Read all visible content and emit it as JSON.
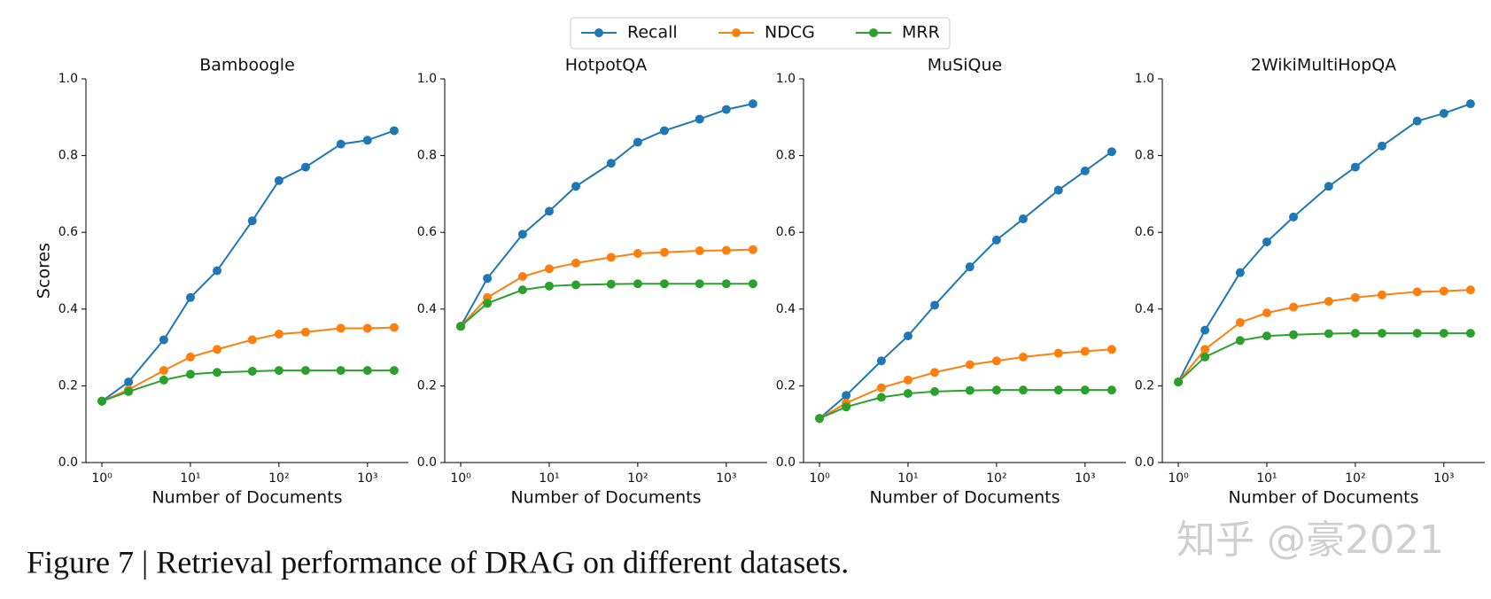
{
  "chart_data": [
    {
      "type": "line",
      "title": "Bamboogle",
      "xlabel": "Number of Documents",
      "ylabel": "Scores",
      "xscale": "log",
      "x": [
        1,
        2,
        5,
        10,
        20,
        50,
        100,
        200,
        500,
        1000,
        2000
      ],
      "series": [
        {
          "name": "Recall",
          "color": "#1f77b4",
          "values": [
            0.16,
            0.21,
            0.32,
            0.43,
            0.5,
            0.63,
            0.735,
            0.77,
            0.83,
            0.84,
            0.865
          ]
        },
        {
          "name": "NDCG",
          "color": "#ff7f0e",
          "values": [
            0.16,
            0.19,
            0.24,
            0.275,
            0.295,
            0.32,
            0.335,
            0.34,
            0.35,
            0.35,
            0.352
          ]
        },
        {
          "name": "MRR",
          "color": "#2ca02c",
          "values": [
            0.16,
            0.185,
            0.215,
            0.23,
            0.235,
            0.238,
            0.24,
            0.24,
            0.24,
            0.24,
            0.24
          ]
        }
      ],
      "xlim": [
        0.66,
        2900
      ],
      "xticks": [
        {
          "value": 1,
          "label": "10⁰"
        },
        {
          "value": 10,
          "label": "10¹"
        },
        {
          "value": 100,
          "label": "10²"
        },
        {
          "value": 1000,
          "label": "10³"
        }
      ],
      "ylim": [
        0,
        1
      ],
      "yticks": [
        {
          "value": 0,
          "label": "0.0"
        },
        0.2,
        0.4,
        0.6,
        0.8,
        {
          "value": 1,
          "label": "1.0"
        }
      ]
    },
    {
      "type": "line",
      "title": "HotpotQA",
      "xlabel": "Number of Documents",
      "xscale": "log",
      "x": [
        1,
        2,
        5,
        10,
        20,
        50,
        100,
        200,
        500,
        1000,
        2000
      ],
      "series": [
        {
          "name": "Recall",
          "color": "#1f77b4",
          "values": [
            0.355,
            0.48,
            0.595,
            0.655,
            0.72,
            0.78,
            0.835,
            0.865,
            0.895,
            0.92,
            0.935
          ]
        },
        {
          "name": "NDCG",
          "color": "#ff7f0e",
          "values": [
            0.355,
            0.43,
            0.485,
            0.505,
            0.52,
            0.535,
            0.545,
            0.548,
            0.552,
            0.553,
            0.555
          ]
        },
        {
          "name": "MRR",
          "color": "#2ca02c",
          "values": [
            0.355,
            0.415,
            0.45,
            0.46,
            0.463,
            0.465,
            0.466,
            0.466,
            0.466,
            0.466,
            0.466
          ]
        }
      ],
      "xlim": [
        0.66,
        2900
      ],
      "xticks": [
        {
          "value": 1,
          "label": "10⁰"
        },
        {
          "value": 10,
          "label": "10¹"
        },
        {
          "value": 100,
          "label": "10²"
        },
        {
          "value": 1000,
          "label": "10³"
        }
      ],
      "ylim": [
        0,
        1
      ],
      "yticks": [
        {
          "value": 0,
          "label": "0.0"
        },
        0.2,
        0.4,
        0.6,
        0.8,
        {
          "value": 1,
          "label": "1.0"
        }
      ]
    },
    {
      "type": "line",
      "title": "MuSiQue",
      "xlabel": "Number of Documents",
      "xscale": "log",
      "x": [
        1,
        2,
        5,
        10,
        20,
        50,
        100,
        200,
        500,
        1000,
        2000
      ],
      "series": [
        {
          "name": "Recall",
          "color": "#1f77b4",
          "values": [
            0.115,
            0.175,
            0.265,
            0.33,
            0.41,
            0.51,
            0.58,
            0.635,
            0.71,
            0.76,
            0.81
          ]
        },
        {
          "name": "NDCG",
          "color": "#ff7f0e",
          "values": [
            0.115,
            0.155,
            0.195,
            0.215,
            0.235,
            0.255,
            0.265,
            0.275,
            0.285,
            0.29,
            0.295
          ]
        },
        {
          "name": "MRR",
          "color": "#2ca02c",
          "values": [
            0.115,
            0.145,
            0.17,
            0.18,
            0.185,
            0.188,
            0.189,
            0.189,
            0.189,
            0.189,
            0.189
          ]
        }
      ],
      "xlim": [
        0.66,
        2900
      ],
      "xticks": [
        {
          "value": 1,
          "label": "10⁰"
        },
        {
          "value": 10,
          "label": "10¹"
        },
        {
          "value": 100,
          "label": "10²"
        },
        {
          "value": 1000,
          "label": "10³"
        }
      ],
      "ylim": [
        0,
        1
      ],
      "yticks": [
        {
          "value": 0,
          "label": "0.0"
        },
        0.2,
        0.4,
        0.6,
        0.8,
        {
          "value": 1,
          "label": "1.0"
        }
      ]
    },
    {
      "type": "line",
      "title": "2WikiMultiHopQA",
      "xlabel": "Number of Documents",
      "xscale": "log",
      "x": [
        1,
        2,
        5,
        10,
        20,
        50,
        100,
        200,
        500,
        1000,
        2000
      ],
      "series": [
        {
          "name": "Recall",
          "color": "#1f77b4",
          "values": [
            0.21,
            0.345,
            0.495,
            0.575,
            0.64,
            0.72,
            0.77,
            0.825,
            0.89,
            0.91,
            0.935
          ]
        },
        {
          "name": "NDCG",
          "color": "#ff7f0e",
          "values": [
            0.21,
            0.295,
            0.365,
            0.39,
            0.405,
            0.42,
            0.43,
            0.437,
            0.445,
            0.447,
            0.45
          ]
        },
        {
          "name": "MRR",
          "color": "#2ca02c",
          "values": [
            0.21,
            0.275,
            0.318,
            0.33,
            0.333,
            0.336,
            0.337,
            0.337,
            0.337,
            0.337,
            0.337
          ]
        }
      ],
      "xlim": [
        0.66,
        2900
      ],
      "xticks": [
        {
          "value": 1,
          "label": "10⁰"
        },
        {
          "value": 10,
          "label": "10¹"
        },
        {
          "value": 100,
          "label": "10²"
        },
        {
          "value": 1000,
          "label": "10³"
        }
      ],
      "ylim": [
        0,
        1
      ],
      "yticks": [
        {
          "value": 0,
          "label": "0.0"
        },
        0.2,
        0.4,
        0.6,
        0.8,
        {
          "value": 1,
          "label": "1.0"
        }
      ]
    }
  ],
  "caption": "Figure 7 | Retrieval performance of DRAG on different datasets.",
  "watermark": "知乎 @豪2021"
}
